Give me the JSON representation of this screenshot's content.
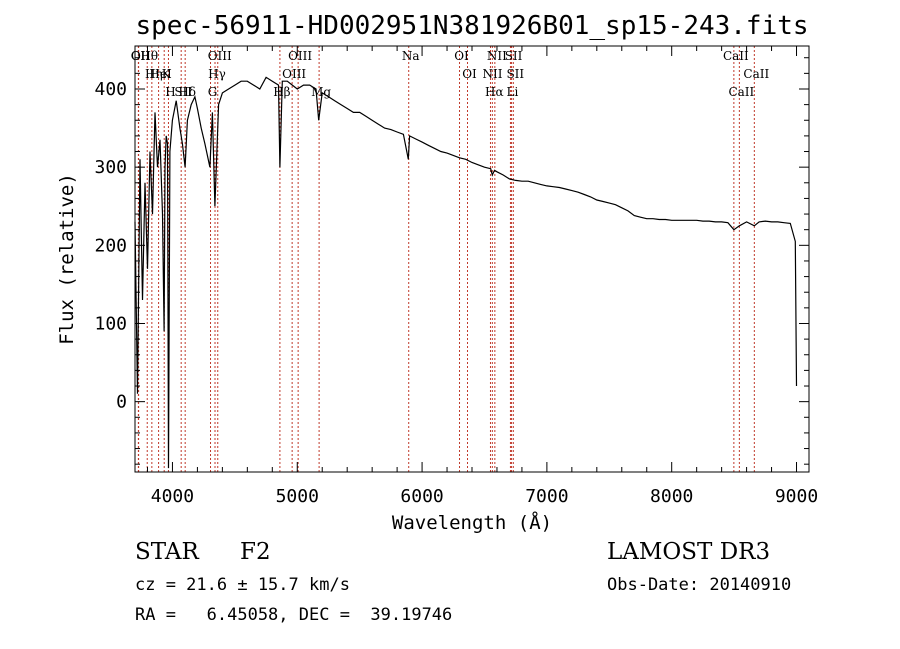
{
  "chart_data": {
    "type": "line",
    "title": "spec-56911-HD002951N381926B01_sp15-243.fits",
    "xlabel": "Wavelength (Å)",
    "ylabel": "Flux (relative)",
    "xlim": [
      3700,
      9100
    ],
    "ylim": [
      -90,
      455
    ],
    "xticks": [
      4000,
      5000,
      6000,
      7000,
      8000,
      9000
    ],
    "yticks": [
      0,
      100,
      200,
      300,
      400
    ],
    "series": [
      {
        "name": "flux",
        "x": [
          3700,
          3720,
          3740,
          3760,
          3780,
          3800,
          3820,
          3840,
          3860,
          3880,
          3900,
          3920,
          3933,
          3940,
          3950,
          3960,
          3968,
          3980,
          4000,
          4030,
          4060,
          4080,
          4101,
          4120,
          4150,
          4180,
          4200,
          4230,
          4260,
          4300,
          4320,
          4340,
          4370,
          4400,
          4450,
          4500,
          4550,
          4600,
          4650,
          4700,
          4750,
          4800,
          4850,
          4861,
          4880,
          4920,
          4960,
          5000,
          5050,
          5100,
          5150,
          5172,
          5200,
          5250,
          5300,
          5350,
          5400,
          5450,
          5500,
          5550,
          5600,
          5650,
          5700,
          5750,
          5800,
          5850,
          5890,
          5900,
          5950,
          6000,
          6050,
          6100,
          6150,
          6200,
          6250,
          6300,
          6350,
          6400,
          6450,
          6500,
          6550,
          6563,
          6580,
          6600,
          6650,
          6700,
          6750,
          6800,
          6850,
          6900,
          6950,
          7000,
          7050,
          7100,
          7150,
          7200,
          7250,
          7300,
          7350,
          7400,
          7450,
          7500,
          7550,
          7600,
          7650,
          7700,
          7750,
          7800,
          7850,
          7900,
          7950,
          8000,
          8050,
          8100,
          8150,
          8200,
          8250,
          8300,
          8350,
          8400,
          8450,
          8498,
          8542,
          8600,
          8662,
          8700,
          8750,
          8800,
          8850,
          8900,
          8950,
          8990,
          9000
        ],
        "values": [
          230,
          10,
          310,
          130,
          280,
          170,
          320,
          240,
          370,
          300,
          335,
          240,
          90,
          300,
          340,
          330,
          -85,
          320,
          360,
          385,
          350,
          330,
          300,
          360,
          380,
          390,
          375,
          350,
          330,
          300,
          370,
          250,
          380,
          395,
          400,
          405,
          410,
          410,
          405,
          400,
          415,
          410,
          405,
          300,
          410,
          410,
          405,
          400,
          405,
          405,
          400,
          360,
          395,
          390,
          385,
          380,
          375,
          370,
          370,
          365,
          360,
          355,
          350,
          348,
          345,
          342,
          310,
          340,
          336,
          332,
          328,
          324,
          320,
          318,
          315,
          312,
          310,
          306,
          303,
          300,
          298,
          290,
          296,
          294,
          290,
          285,
          283,
          282,
          282,
          280,
          278,
          276,
          275,
          274,
          272,
          270,
          268,
          265,
          262,
          258,
          256,
          254,
          252,
          248,
          244,
          238,
          236,
          234,
          234,
          233,
          233,
          232,
          232,
          232,
          232,
          232,
          231,
          231,
          230,
          230,
          229,
          220,
          225,
          230,
          225,
          230,
          231,
          230,
          230,
          229,
          228,
          205,
          20
        ]
      }
    ],
    "lines": [
      {
        "name": "Hθ",
        "wl": 3798
      },
      {
        "name": "K",
        "wl": 3934
      },
      {
        "name": "Hδ",
        "wl": 4102
      },
      {
        "name": "OII",
        "wl": 3727
      },
      {
        "name": "HeI",
        "wl": 3889
      },
      {
        "name": "SII",
        "wl": 4070
      },
      {
        "name": "OII",
        "wl": 3729
      },
      {
        "name": "Hη",
        "wl": 3835
      },
      {
        "name": "H",
        "wl": 3968
      },
      {
        "name": "OIII",
        "wl": 4363
      },
      {
        "name": "Hγ",
        "wl": 4341
      },
      {
        "name": "G",
        "wl": 4305
      },
      {
        "name": "OIII",
        "wl": 5007
      },
      {
        "name": "OIII",
        "wl": 4959
      },
      {
        "name": "Hβ",
        "wl": 4861
      },
      {
        "name": "Mg",
        "wl": 5175
      },
      {
        "name": "Na",
        "wl": 5893
      },
      {
        "name": "OI",
        "wl": 6300
      },
      {
        "name": "OI",
        "wl": 6364
      },
      {
        "name": "Hα",
        "wl": 6563
      },
      {
        "name": "SII",
        "wl": 6717
      },
      {
        "name": "NII",
        "wl": 6548
      },
      {
        "name": "Li",
        "wl": 6708
      },
      {
        "name": "NII",
        "wl": 6583
      },
      {
        "name": "SII",
        "wl": 6731
      },
      {
        "name": "CaII",
        "wl": 8542
      },
      {
        "name": "CaII",
        "wl": 8498
      },
      {
        "name": "CaII",
        "wl": 8662
      }
    ]
  },
  "info": {
    "object_class": "STAR",
    "subclass": "F2",
    "survey": "LAMOST DR3",
    "redshift_text": "cz = 21.6 ± 15.7 km/s",
    "obs_date_text": "Obs-Date: 20140910",
    "coords_text": "RA =   6.45058, DEC =  39.19746"
  },
  "colors": {
    "spectrum": "#000000",
    "line_markers": "#c0392b",
    "axes": "#000000"
  }
}
